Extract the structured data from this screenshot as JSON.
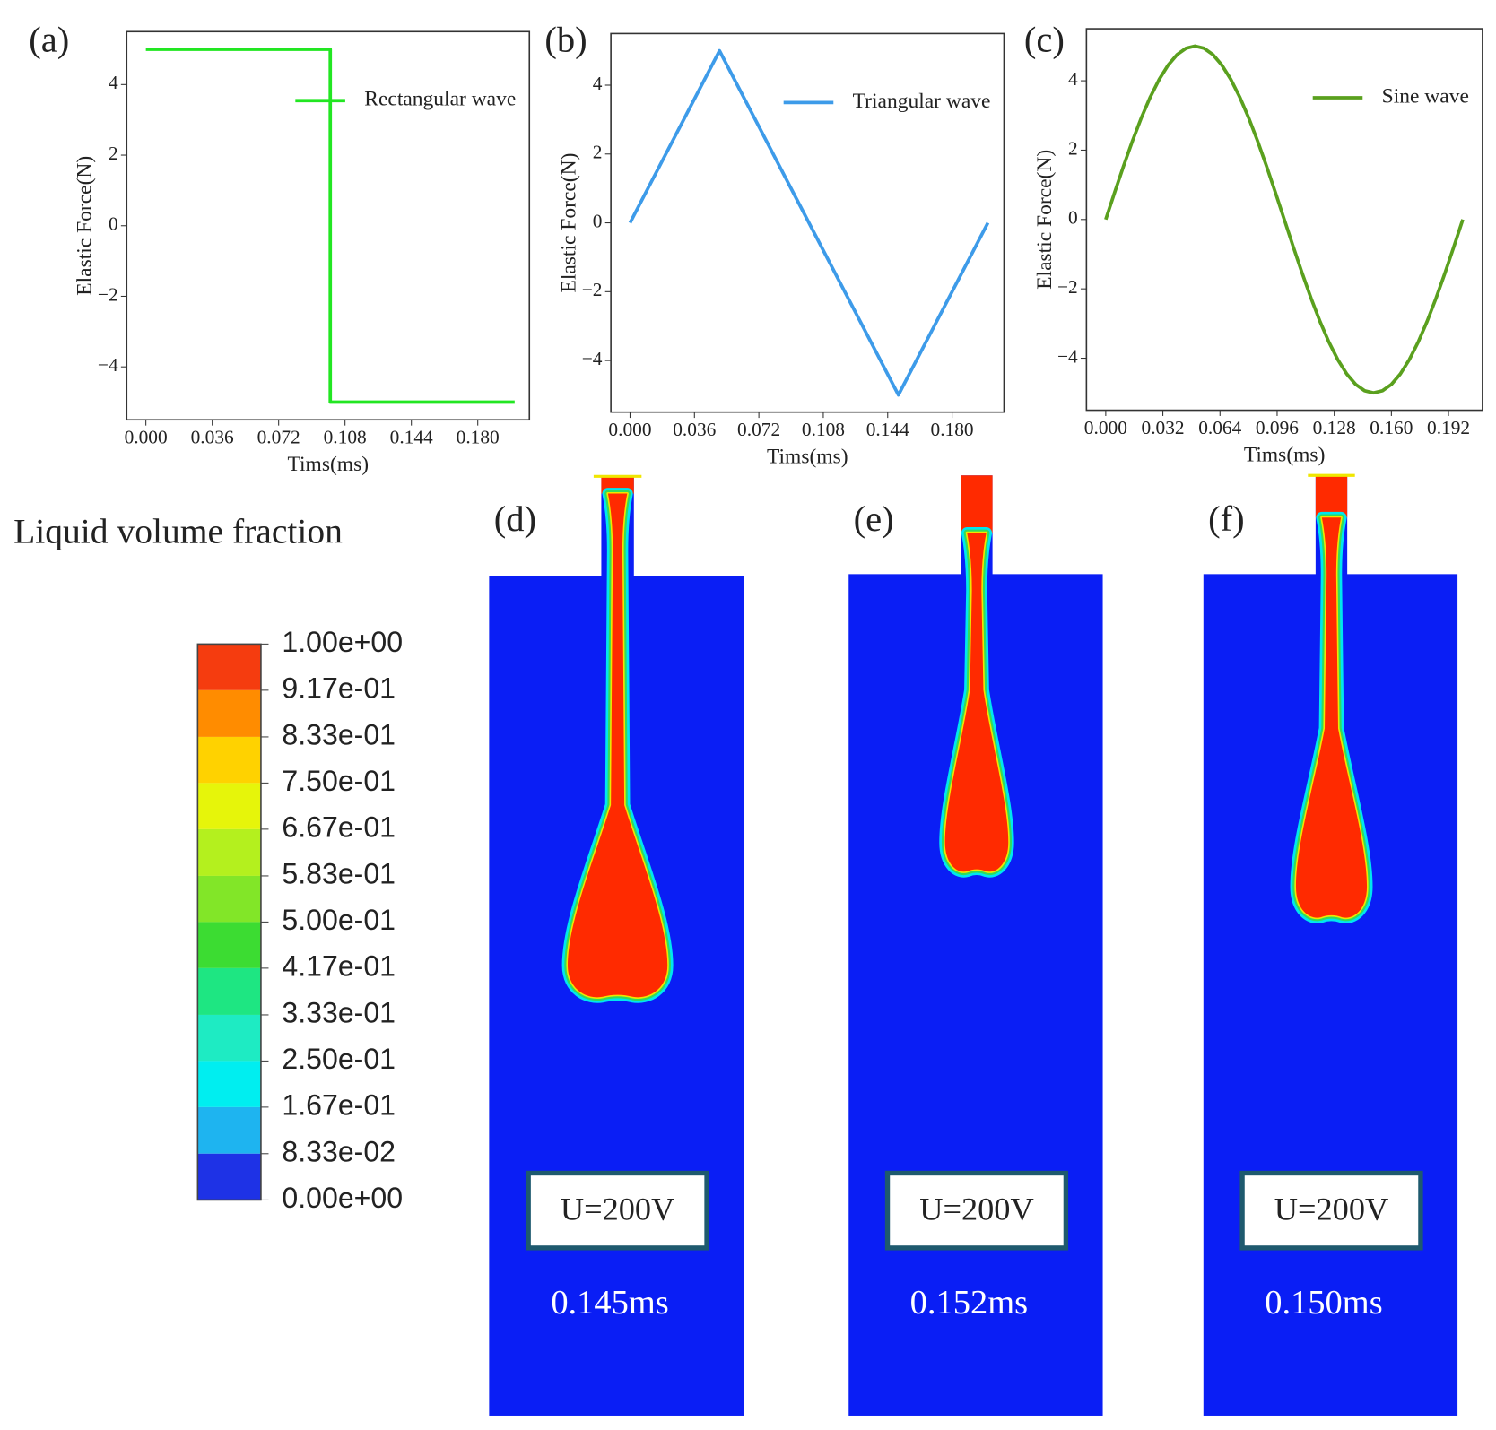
{
  "chart_data": [
    {
      "type": "line",
      "panel_label": "(a)",
      "xlabel": "Tims(ms)",
      "ylabel": "Elastic Force(N)",
      "legend": "upper right",
      "x": [
        0,
        0.1,
        0.1,
        0.2
      ],
      "series": [
        {
          "name": "Rectangular wave",
          "color": "#22e622",
          "values": [
            5,
            5,
            -5,
            -5
          ]
        }
      ],
      "xlim": [
        -0.0104,
        0.208
      ],
      "ylim": [
        -5.5,
        5.5
      ],
      "xticks": [
        {
          "value": 0,
          "label": "0.000"
        },
        {
          "value": 0.036,
          "label": "0.036"
        },
        {
          "value": 0.072,
          "label": "0.072"
        },
        {
          "value": 0.108,
          "label": "0.108"
        },
        {
          "value": 0.144,
          "label": "0.144"
        },
        {
          "value": 0.18,
          "label": "0.180"
        }
      ],
      "yticks": [
        {
          "value": -4,
          "label": "−4"
        },
        {
          "value": -2,
          "label": "−2"
        },
        0,
        2,
        4
      ]
    },
    {
      "type": "line",
      "panel_label": "(b)",
      "xlabel": "Tims(ms)",
      "ylabel": "Elastic Force(N)",
      "legend": "upper right",
      "x": [
        0,
        0.05,
        0.15,
        0.2
      ],
      "series": [
        {
          "name": "Triangular wave",
          "color": "#3d9be9",
          "values": [
            0,
            5,
            -5,
            0
          ]
        }
      ],
      "xlim": [
        -0.0107,
        0.209
      ],
      "ylim": [
        -5.5,
        5.5
      ],
      "xticks": [
        {
          "value": 0,
          "label": "0.000"
        },
        {
          "value": 0.036,
          "label": "0.036"
        },
        {
          "value": 0.072,
          "label": "0.072"
        },
        {
          "value": 0.108,
          "label": "0.108"
        },
        {
          "value": 0.144,
          "label": "0.144"
        },
        {
          "value": 0.18,
          "label": "0.180"
        }
      ],
      "yticks": [
        {
          "value": -4,
          "label": "−4"
        },
        {
          "value": -2,
          "label": "−2"
        },
        0,
        2,
        4
      ]
    },
    {
      "type": "line",
      "panel_label": "(c)",
      "xlabel": "Tims(ms)",
      "ylabel": "Elastic Force(N)",
      "legend": "upper right",
      "x": [
        0,
        0.005,
        0.01,
        0.015,
        0.02,
        0.025,
        0.03,
        0.035,
        0.04,
        0.045,
        0.05,
        0.055,
        0.06,
        0.065,
        0.07,
        0.075,
        0.08,
        0.085,
        0.09,
        0.095,
        0.1,
        0.105,
        0.11,
        0.115,
        0.12,
        0.125,
        0.13,
        0.135,
        0.14,
        0.145,
        0.15,
        0.155,
        0.16,
        0.165,
        0.17,
        0.175,
        0.18,
        0.185,
        0.19,
        0.195,
        0.2
      ],
      "series": [
        {
          "name": "Sine wave",
          "color": "#5aa01e",
          "values": [
            0,
            0.782,
            1.545,
            2.27,
            2.939,
            3.536,
            4.045,
            4.455,
            4.755,
            4.938,
            5,
            4.938,
            4.755,
            4.455,
            4.045,
            3.536,
            2.939,
            2.27,
            1.545,
            0.782,
            0,
            -0.782,
            -1.545,
            -2.27,
            -2.939,
            -3.536,
            -4.045,
            -4.455,
            -4.755,
            -4.938,
            -5,
            -4.938,
            -4.755,
            -4.455,
            -4.045,
            -3.536,
            -2.939,
            -2.27,
            -1.545,
            -0.782,
            0
          ]
        }
      ],
      "xlim": [
        -0.0108,
        0.211
      ],
      "ylim": [
        -5.5,
        5.5
      ],
      "xticks": [
        {
          "value": 0,
          "label": "0.000"
        },
        {
          "value": 0.032,
          "label": "0.032"
        },
        {
          "value": 0.064,
          "label": "0.064"
        },
        {
          "value": 0.096,
          "label": "0.096"
        },
        {
          "value": 0.128,
          "label": "0.128"
        },
        {
          "value": 0.16,
          "label": "0.160"
        },
        {
          "value": 0.192,
          "label": "0.192"
        }
      ],
      "yticks": [
        {
          "value": -4,
          "label": "−4"
        },
        {
          "value": -2,
          "label": "−2"
        },
        0,
        2,
        4
      ]
    }
  ],
  "colorbar": {
    "title": "Liquid volume fraction",
    "lim": [
      0,
      1
    ],
    "colors": [
      "#f53c0f",
      "#ff8c00",
      "#ffd200",
      "#e6f50a",
      "#b4f01e",
      "#82e628",
      "#3cdc32",
      "#1ee682",
      "#1eebc3",
      "#00eef0",
      "#1eb4f0",
      "#1e32e6"
    ],
    "ticks": [
      {
        "value": 1,
        "label": "1.00e+00"
      },
      {
        "value": 0.917,
        "label": "9.17e-01"
      },
      {
        "value": 0.833,
        "label": "8.33e-01"
      },
      {
        "value": 0.75,
        "label": "7.50e-01"
      },
      {
        "value": 0.667,
        "label": "6.67e-01"
      },
      {
        "value": 0.583,
        "label": "5.83e-01"
      },
      {
        "value": 0.5,
        "label": "5.00e-01"
      },
      {
        "value": 0.417,
        "label": "4.17e-01"
      },
      {
        "value": 0.333,
        "label": "3.33e-01"
      },
      {
        "value": 0.25,
        "label": "2.50e-01"
      },
      {
        "value": 0.167,
        "label": "1.67e-01"
      },
      {
        "value": 0.0833,
        "label": "8.33e-02"
      },
      {
        "value": 0,
        "label": "0.00e+00"
      }
    ]
  },
  "panels": [
    {
      "label": "(d)",
      "voltage": "U=200V",
      "time": "0.145ms"
    },
    {
      "label": "(e)",
      "voltage": "U=200V",
      "time": "0.152ms"
    },
    {
      "label": "(f)",
      "voltage": "U=200V",
      "time": "0.150ms"
    }
  ]
}
